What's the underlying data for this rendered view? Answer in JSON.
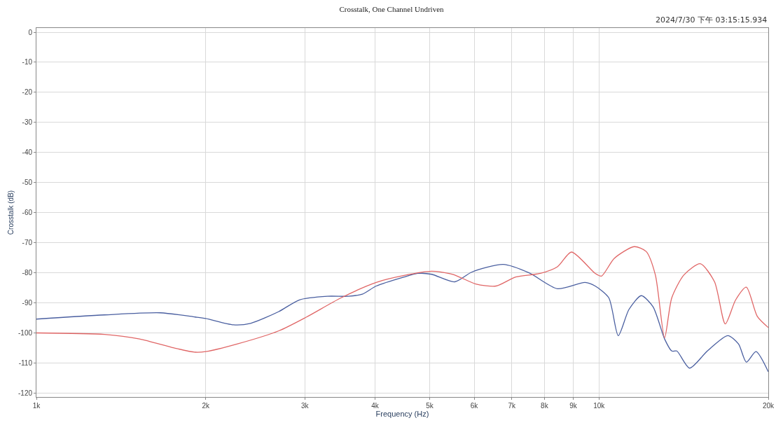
{
  "chart_data": {
    "type": "line",
    "title": "Crosstalk, One Channel Undriven",
    "xlabel": "Frequency (Hz)",
    "ylabel": "Crosstalk (dB)",
    "annotations": [
      "2024/7/30 下午 03:15:15.934"
    ],
    "log": "x",
    "grid": true,
    "marker": "none",
    "line_style": "solid",
    "xlim": [
      1000,
      20000
    ],
    "ylim": [
      -121.3,
      1.4
    ],
    "xticks": [
      {
        "value": 1000,
        "label": "1k"
      },
      {
        "value": 2000,
        "label": "2k"
      },
      {
        "value": 3000,
        "label": "3k"
      },
      {
        "value": 4000,
        "label": "4k"
      },
      {
        "value": 5000,
        "label": "5k"
      },
      {
        "value": 6000,
        "label": "6k"
      },
      {
        "value": 7000,
        "label": "7k"
      },
      {
        "value": 8000,
        "label": "8k"
      },
      {
        "value": 9000,
        "label": "9k"
      },
      {
        "value": 10000,
        "label": "10k"
      },
      {
        "value": 20000,
        "label": "20k"
      }
    ],
    "yticks": [
      0,
      -10,
      -20,
      -30,
      -40,
      -50,
      -60,
      -70,
      -80,
      -90,
      -100,
      -110,
      -120
    ],
    "series": [
      {
        "color": "#4a5fa0",
        "x": [
          1000,
          1322,
          1661,
          1915,
          2000,
          2240,
          2403,
          2697,
          2935,
          3291,
          3586,
          3796,
          4019,
          4504,
          4763,
          5041,
          5540,
          5938,
          6760,
          7510,
          8437,
          9446,
          9847,
          10410,
          10823,
          11306,
          11893,
          12478,
          13082,
          13474,
          13754,
          14493,
          15585,
          16950,
          17709,
          18281,
          19020,
          20000
        ],
        "values": [
          -95.4,
          -94,
          -93.3,
          -94.7,
          -95.2,
          -97.3,
          -96.8,
          -92.9,
          -89,
          -87.8,
          -87.8,
          -87.1,
          -84.4,
          -81.4,
          -80.2,
          -80.5,
          -83,
          -79.8,
          -77.2,
          -80,
          -85.3,
          -83.2,
          -84.4,
          -88.3,
          -100.9,
          -92.2,
          -87.6,
          -91.3,
          -102,
          -106,
          -106,
          -111.7,
          -106,
          -100.9,
          -103.7,
          -109.7,
          -106.2,
          -112.9
        ]
      },
      {
        "color": "#e06666",
        "x": [
          1000,
          1322,
          1525,
          1757,
          1915,
          2000,
          2272,
          2697,
          3021,
          3482,
          4019,
          4504,
          5041,
          5496,
          6039,
          6563,
          7111,
          7869,
          8437,
          8935,
          9847,
          10104,
          10648,
          11553,
          12130,
          12597,
          13082,
          13474,
          14160,
          15140,
          16050,
          16771,
          17500,
          18281,
          19120,
          20000
        ],
        "values": [
          -100,
          -100.5,
          -102,
          -105,
          -106.4,
          -106.2,
          -103.7,
          -99.3,
          -94.7,
          -88.3,
          -83.2,
          -80.9,
          -79.5,
          -80.5,
          -83.7,
          -84.4,
          -81.4,
          -80.2,
          -78,
          -73.1,
          -80.2,
          -81.1,
          -75.2,
          -71.3,
          -72.9,
          -80.7,
          -101.6,
          -88.3,
          -80.7,
          -77,
          -83,
          -97,
          -89,
          -84.8,
          -94.5,
          -98.2
        ]
      }
    ]
  }
}
